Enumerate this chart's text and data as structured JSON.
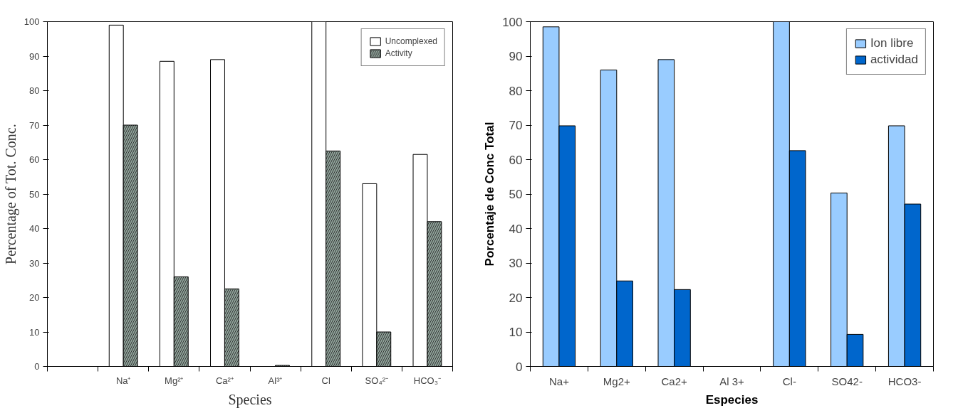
{
  "chart_data": [
    {
      "type": "bar",
      "xlabel": "Species",
      "ylabel": "Percentage of Tot. Conc.",
      "categories": [
        null,
        "Na⁺",
        "Mg²⁺",
        "Ca²⁺",
        "Al³⁺",
        "Cl",
        "SO₄²⁻",
        "HCO₃⁻"
      ],
      "series": [
        {
          "name": "Uncomplexed",
          "color": "#ffffff",
          "values": [
            null,
            99,
            88.5,
            89,
            null,
            100,
            53,
            61.5
          ]
        },
        {
          "name": "Activity",
          "color": "#8fa39a",
          "values": [
            null,
            70,
            26,
            22.5,
            0.3,
            62.5,
            10,
            42
          ]
        }
      ],
      "ylim": [
        0,
        100
      ],
      "yticks": [
        0,
        10,
        20,
        30,
        40,
        50,
        60,
        70,
        80,
        90,
        100
      ],
      "legend": "top right"
    },
    {
      "type": "bar",
      "xlabel": "Especies",
      "ylabel": "Porcentaje de Conc Total",
      "categories": [
        "Na+",
        "Mg2+",
        "Ca2+",
        "Al 3+",
        "Cl-",
        "SO42-",
        "HCO3-"
      ],
      "series": [
        {
          "name": "Ion libre",
          "color": "#99ccff",
          "values": [
            98.5,
            86,
            89,
            null,
            100,
            50.3,
            69.8
          ]
        },
        {
          "name": "actividad",
          "color": "#0066cc",
          "values": [
            69.8,
            24.8,
            22.3,
            null,
            62.6,
            9.3,
            47.1
          ]
        }
      ],
      "ylim": [
        0,
        100
      ],
      "yticks": [
        0,
        10,
        20,
        30,
        40,
        50,
        60,
        70,
        80,
        90,
        100
      ],
      "legend": "top right"
    }
  ]
}
